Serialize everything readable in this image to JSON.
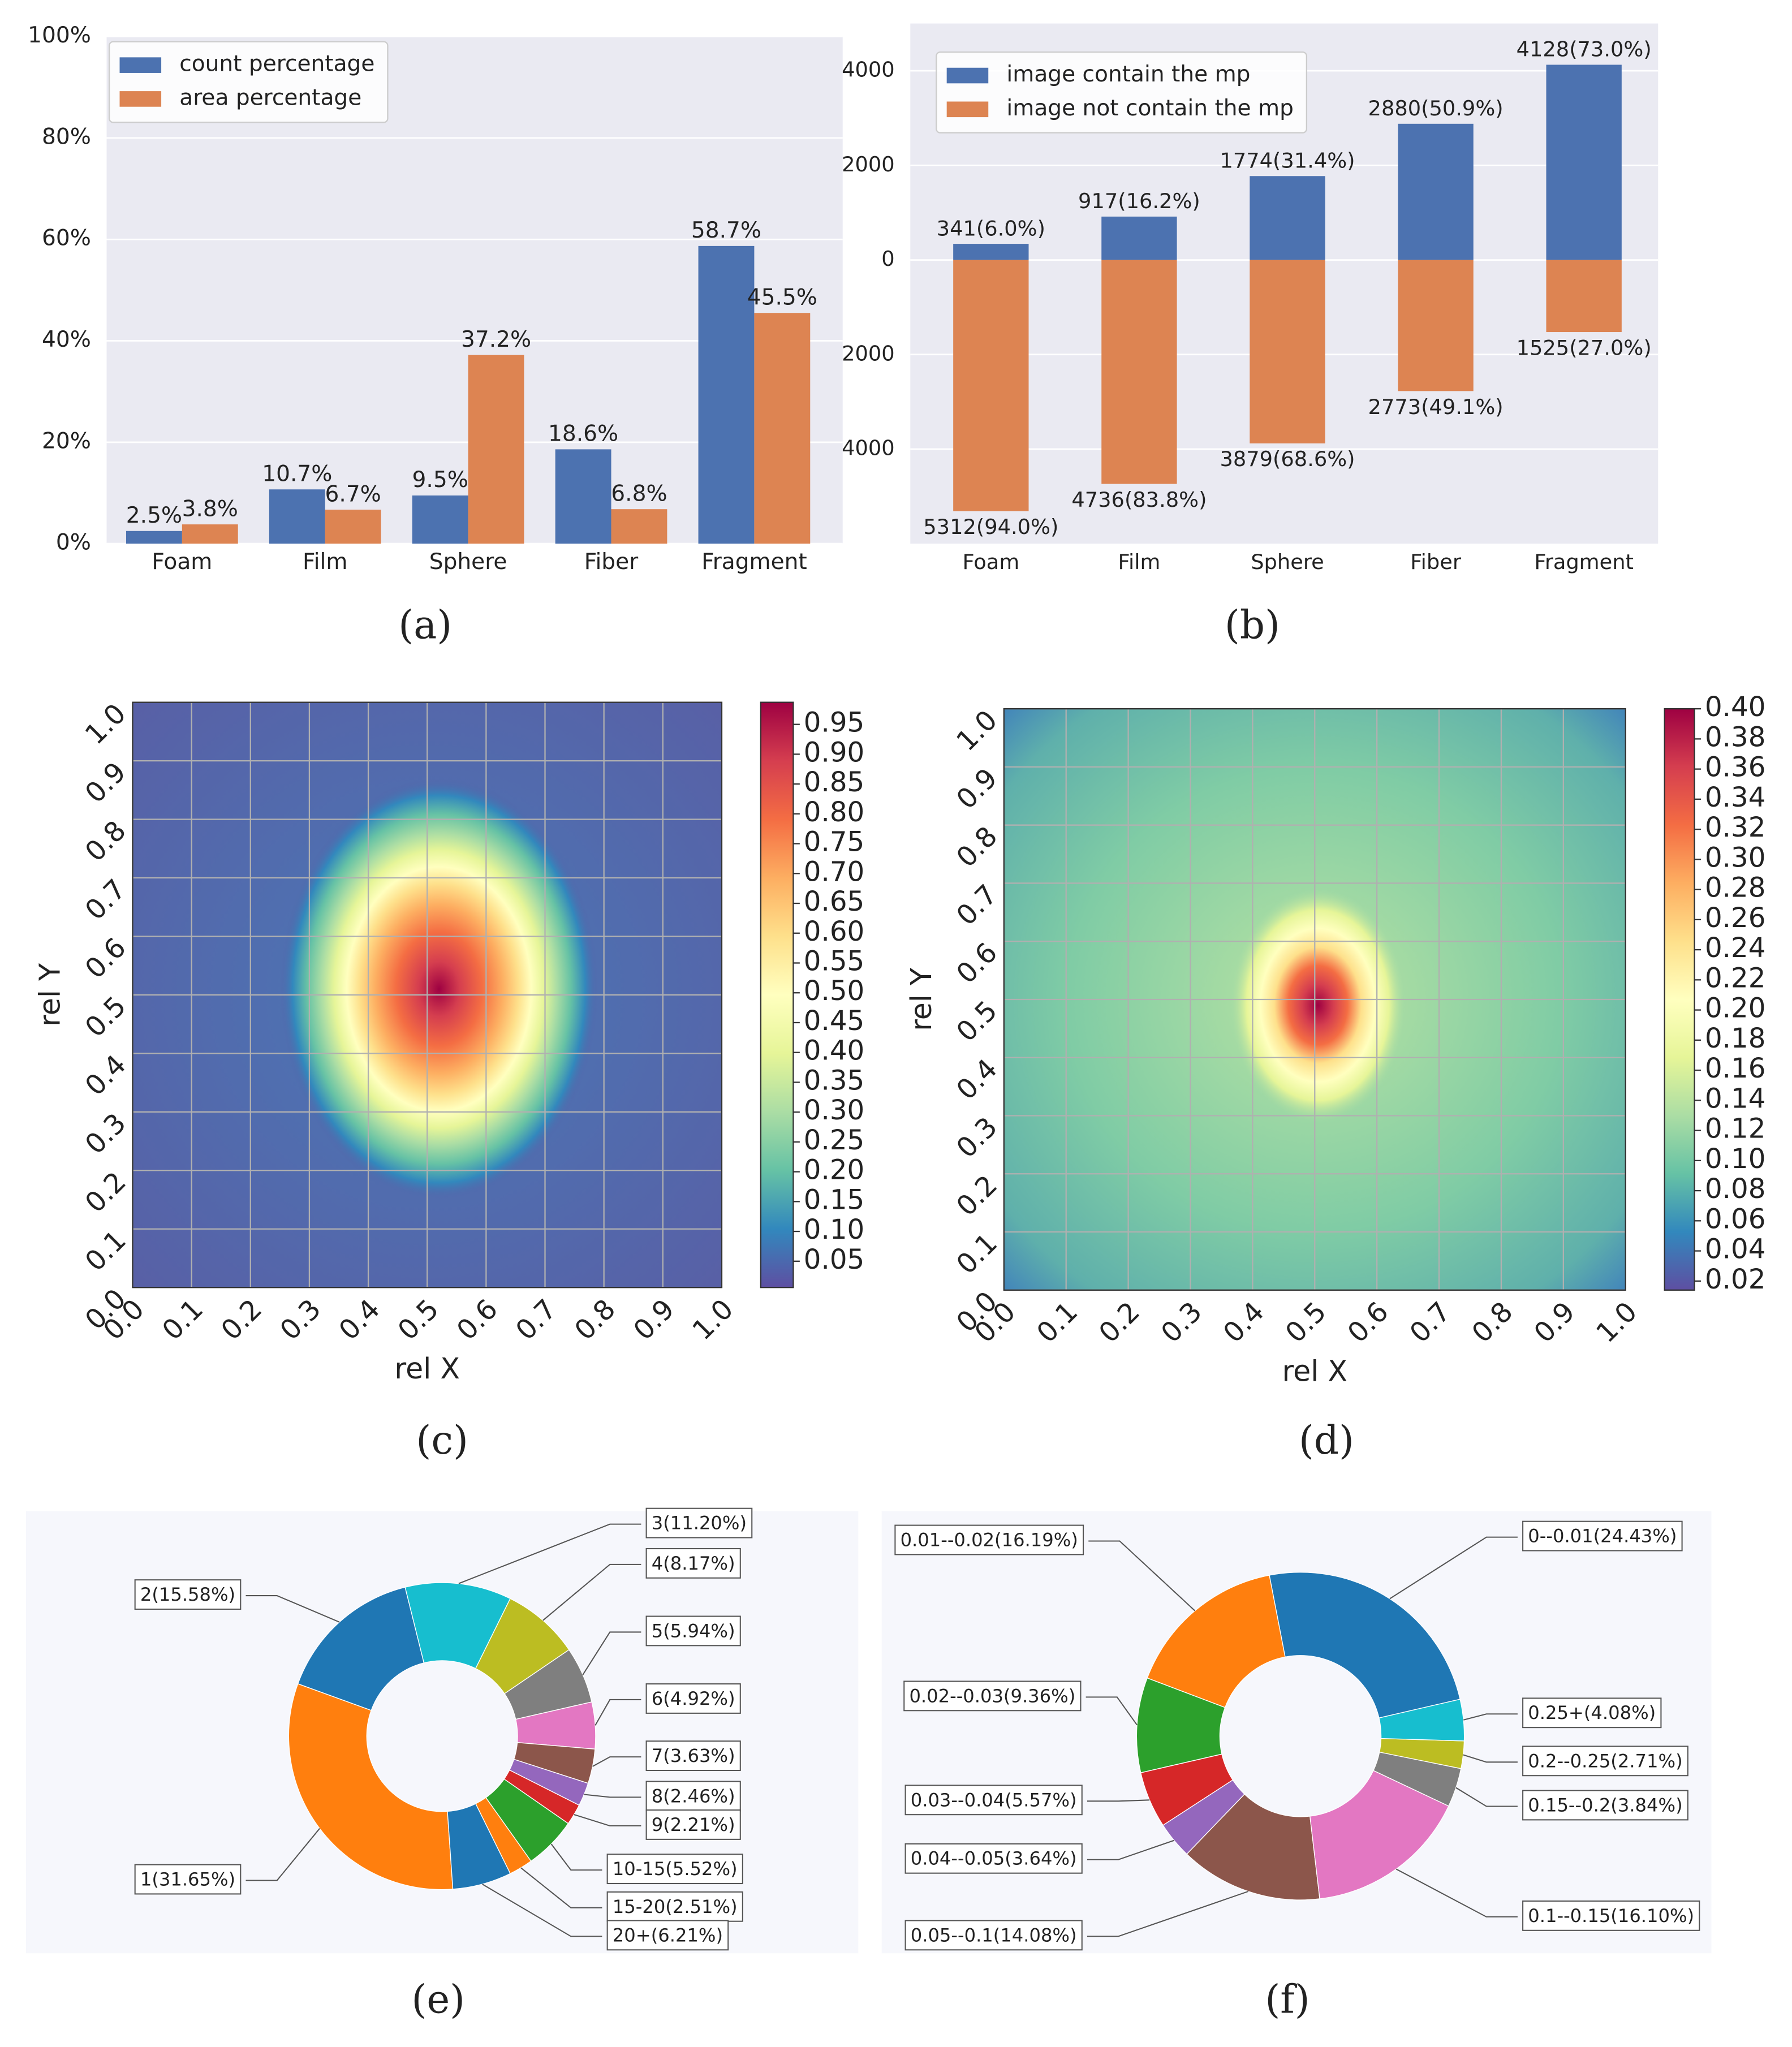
{
  "chart_data": [
    {
      "type": "bar",
      "label": "(a)",
      "categories": [
        "Foam",
        "Film",
        "Sphere",
        "Fiber",
        "Fragment"
      ],
      "series": [
        {
          "name": "count percentage",
          "color": "#4c72b0",
          "values": [
            2.5,
            10.7,
            9.5,
            18.6,
            58.7
          ],
          "value_labels": [
            "2.5%",
            "10.7%",
            "9.5%",
            "18.6%",
            "58.7%"
          ]
        },
        {
          "name": "area percentage",
          "color": "#dd8452",
          "values": [
            3.8,
            6.7,
            37.2,
            6.8,
            45.5
          ],
          "value_labels": [
            "3.8%",
            "6.7%",
            "37.2%",
            "6.8%",
            "45.5%"
          ]
        }
      ],
      "ylim": [
        0,
        100
      ],
      "yticks": [
        {
          "value": 0,
          "label": "0%"
        },
        {
          "value": 20,
          "label": "20%"
        },
        {
          "value": 40,
          "label": "40%"
        },
        {
          "value": 60,
          "label": "60%"
        },
        {
          "value": 80,
          "label": "80%"
        },
        {
          "value": 100,
          "label": "100%"
        }
      ],
      "grid": true,
      "legend": "upper left"
    },
    {
      "type": "bar",
      "stacked": true,
      "label": "(b)",
      "categories": [
        "Foam",
        "Film",
        "Sphere",
        "Fiber",
        "Fragment"
      ],
      "series": [
        {
          "name": "image contain the mp",
          "color": "#4c72b0",
          "values": [
            341,
            917,
            1774,
            2880,
            4128
          ],
          "value_labels": [
            "341(6.0%)",
            "917(16.2%)",
            "1774(31.4%)",
            "2880(50.9%)",
            "4128(73.0%)"
          ]
        },
        {
          "name": "image not contain the mp",
          "color": "#dd8452",
          "values": [
            -5312,
            -4736,
            -3879,
            -2773,
            -1525
          ],
          "value_labels": [
            "5312(94.0%)",
            "4736(83.8%)",
            "3879(68.6%)",
            "2773(49.1%)",
            "1525(27.0%)"
          ]
        }
      ],
      "ylim": [
        -6000,
        5000
      ],
      "yticks": [
        {
          "value": -4000,
          "label": "4000"
        },
        {
          "value": -2000,
          "label": "2000"
        },
        0,
        2000,
        4000
      ],
      "grid": true,
      "legend": "upper left"
    },
    {
      "type": "heatmap",
      "label": "(c)",
      "xlabel": "rel X",
      "ylabel": "rel Y",
      "colormap": "Spectral_r",
      "xlim": [
        0,
        1
      ],
      "ylim": [
        0,
        1
      ],
      "xticks": [
        {
          "value": 0,
          "label": "0.0"
        },
        0.1,
        0.2,
        0.3,
        0.4,
        0.5,
        0.6,
        0.7,
        0.8,
        0.9,
        {
          "value": 1,
          "label": "1.0"
        }
      ],
      "yticks": [
        {
          "value": 0,
          "label": "0.0"
        },
        0.1,
        0.2,
        0.3,
        0.4,
        0.5,
        0.6,
        0.7,
        0.8,
        0.9,
        {
          "value": 1,
          "label": "1.0"
        }
      ],
      "grid": true,
      "clim": [
        0.006,
        0.987
      ],
      "cticks": [
        0.05,
        {
          "value": 0.1,
          "label": "0.10"
        },
        0.15,
        {
          "value": 0.2,
          "label": "0.20"
        },
        0.25,
        {
          "value": 0.3,
          "label": "0.30"
        },
        0.35,
        {
          "value": 0.4,
          "label": "0.40"
        },
        0.45,
        {
          "value": 0.5,
          "label": "0.50"
        },
        0.55,
        {
          "value": 0.6,
          "label": "0.60"
        },
        0.65,
        {
          "value": 0.7,
          "label": "0.70"
        },
        0.75,
        {
          "value": 0.8,
          "label": "0.80"
        },
        0.85,
        {
          "value": 0.9,
          "label": "0.90"
        },
        0.95
      ]
    },
    {
      "type": "heatmap",
      "label": "(d)",
      "xlabel": "rel X",
      "ylabel": "rel Y",
      "colormap": "Spectral_r",
      "xlim": [
        0,
        1
      ],
      "ylim": [
        0,
        1
      ],
      "xticks": [
        {
          "value": 0,
          "label": "0.0"
        },
        0.1,
        0.2,
        0.3,
        0.4,
        0.5,
        0.6,
        0.7,
        0.8,
        0.9,
        {
          "value": 1,
          "label": "1.0"
        }
      ],
      "yticks": [
        {
          "value": 0,
          "label": "0.0"
        },
        0.1,
        0.2,
        0.3,
        0.4,
        0.5,
        0.6,
        0.7,
        0.8,
        0.9,
        {
          "value": 1,
          "label": "1.0"
        }
      ],
      "grid": true,
      "clim": [
        0.014,
        0.4
      ],
      "cticks": [
        0.02,
        0.04,
        0.06,
        0.08,
        {
          "value": 0.1,
          "label": "0.10"
        },
        0.12,
        0.14,
        0.16,
        0.18,
        {
          "value": 0.2,
          "label": "0.20"
        },
        0.22,
        0.24,
        0.26,
        0.28,
        {
          "value": 0.3,
          "label": "0.30"
        },
        0.32,
        0.34,
        0.36,
        0.38,
        {
          "value": 0.4,
          "label": "0.40"
        }
      ]
    },
    {
      "type": "donut",
      "label": "(e)",
      "labels": [
        "1(31.65%)",
        "2(15.58%)",
        "3(11.20%)",
        "4(8.17%)",
        "5(5.94%)",
        "6(4.92%)",
        "7(3.63%)",
        "8(2.46%)",
        "9(2.21%)",
        "10-15(5.52%)",
        "15-20(2.51%)",
        "20+(6.21%)"
      ],
      "values": [
        31.65,
        15.58,
        11.2,
        8.17,
        5.94,
        4.92,
        3.63,
        2.46,
        2.21,
        5.52,
        2.51,
        6.21
      ],
      "colors": [
        "#ff7f0e",
        "#1f77b4",
        "#17becf",
        "#bcbd22",
        "#7f7f7f",
        "#e377c2",
        "#8c564b",
        "#9467bd",
        "#d62728",
        "#2ca02c",
        "#ff7f0e",
        "#1f77b4"
      ]
    },
    {
      "type": "donut",
      "label": "(f)",
      "labels": [
        "0--0.01(24.43%)",
        "0.01--0.02(16.19%)",
        "0.02--0.03(9.36%)",
        "0.03--0.04(5.57%)",
        "0.04--0.05(3.64%)",
        "0.05--0.1(14.08%)",
        "0.1--0.15(16.10%)",
        "0.15--0.2(3.84%)",
        "0.2--0.25(2.71%)",
        "0.25+(4.08%)"
      ],
      "values": [
        24.43,
        16.19,
        9.36,
        5.57,
        3.64,
        14.08,
        16.1,
        3.84,
        2.71,
        4.08
      ],
      "colors": [
        "#1f77b4",
        "#ff7f0e",
        "#2ca02c",
        "#d62728",
        "#9467bd",
        "#8c564b",
        "#e377c2",
        "#7f7f7f",
        "#bcbd22",
        "#17becf"
      ]
    }
  ]
}
